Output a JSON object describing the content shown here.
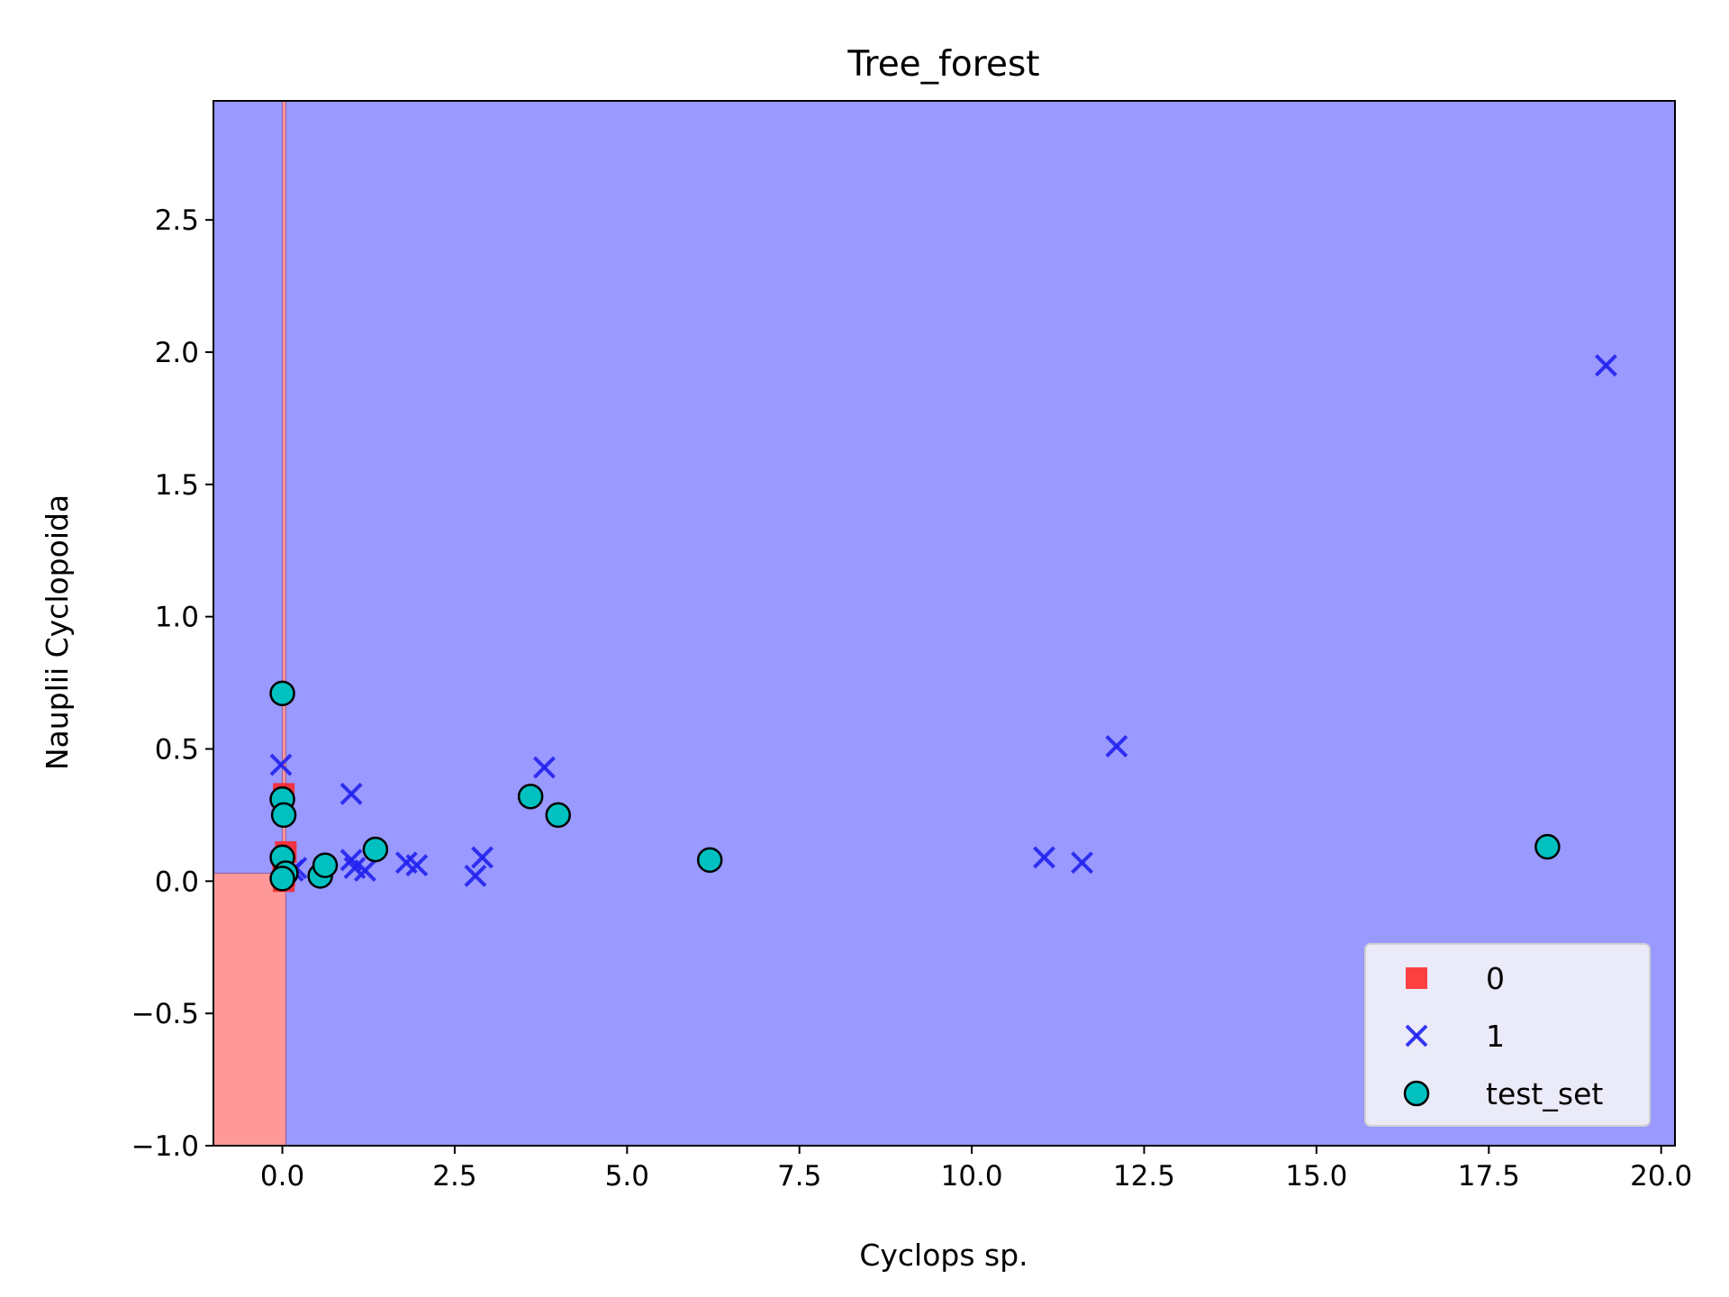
{
  "chart_data": {
    "type": "scatter",
    "title": "Tree_forest",
    "xlabel": "Cyclops sp.",
    "ylabel": "Nauplii Cyclopoida",
    "xlim": [
      -1.0,
      20.2
    ],
    "ylim": [
      -1.0,
      2.95
    ],
    "xticks": [
      0.0,
      2.5,
      5.0,
      7.5,
      10.0,
      12.5,
      15.0,
      17.5,
      20.0
    ],
    "xtick_labels": [
      "0.0",
      "2.5",
      "5.0",
      "7.5",
      "10.0",
      "12.5",
      "15.0",
      "17.5",
      "20.0"
    ],
    "yticks": [
      -1.0,
      -0.5,
      0.0,
      0.5,
      1.0,
      1.5,
      2.0,
      2.5
    ],
    "ytick_labels": [
      "−1.0",
      "−0.5",
      "0.0",
      "0.5",
      "1.0",
      "1.5",
      "2.0",
      "2.5"
    ],
    "grid": false,
    "legend_position": "lower-right",
    "decision_regions": [
      {
        "class": "1",
        "color": "#9999ff",
        "x": [
          -1.0,
          20.2
        ],
        "y": [
          -1.0,
          2.95
        ]
      },
      {
        "class": "0",
        "color": "#ff9999",
        "x": [
          -1.0,
          0.05
        ],
        "y": [
          -1.0,
          0.03
        ]
      },
      {
        "class": "0",
        "color": "#ff9999",
        "x": [
          0.0,
          0.05
        ],
        "y": [
          0.03,
          2.95
        ]
      }
    ],
    "series": [
      {
        "name": "0",
        "marker": "square",
        "color": "#ff2222",
        "points": [
          [
            0.02,
            0.33
          ],
          [
            0.05,
            0.11
          ],
          [
            0.01,
            0.05
          ],
          [
            0.03,
            0.02
          ],
          [
            0.02,
            0.0
          ]
        ]
      },
      {
        "name": "1",
        "marker": "x",
        "color": "#2222ee",
        "points": [
          [
            -0.02,
            0.44
          ],
          [
            0.15,
            0.04
          ],
          [
            0.2,
            0.05
          ],
          [
            1.0,
            0.33
          ],
          [
            1.0,
            0.08
          ],
          [
            1.05,
            0.05
          ],
          [
            1.2,
            0.04
          ],
          [
            1.8,
            0.07
          ],
          [
            1.95,
            0.06
          ],
          [
            2.8,
            0.02
          ],
          [
            2.9,
            0.09
          ],
          [
            3.8,
            0.43
          ],
          [
            11.05,
            0.09
          ],
          [
            11.6,
            0.07
          ],
          [
            12.1,
            0.51
          ],
          [
            19.2,
            1.95
          ]
        ]
      },
      {
        "name": "test_set",
        "marker": "circle",
        "color": "#00c0c0",
        "points": [
          [
            0.0,
            0.71
          ],
          [
            0.0,
            0.31
          ],
          [
            0.02,
            0.25
          ],
          [
            0.0,
            0.09
          ],
          [
            0.05,
            0.03
          ],
          [
            0.0,
            0.01
          ],
          [
            0.55,
            0.02
          ],
          [
            0.62,
            0.06
          ],
          [
            1.35,
            0.12
          ],
          [
            3.6,
            0.32
          ],
          [
            4.0,
            0.25
          ],
          [
            6.2,
            0.08
          ],
          [
            18.35,
            0.13
          ]
        ]
      }
    ]
  }
}
